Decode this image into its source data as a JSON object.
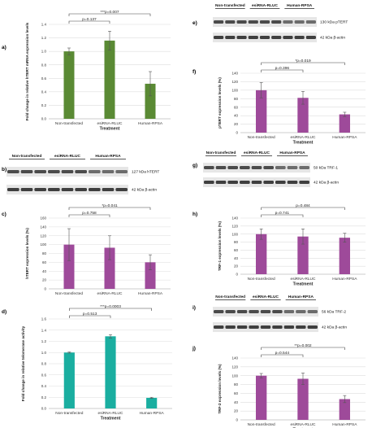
{
  "panels": [
    {
      "key": "a",
      "letter": "a)"
    },
    {
      "key": "b",
      "letter": "b)"
    },
    {
      "key": "c",
      "letter": "c)"
    },
    {
      "key": "d",
      "letter": "d)"
    },
    {
      "key": "e",
      "letter": "e)"
    },
    {
      "key": "f",
      "letter": "f)"
    },
    {
      "key": "g",
      "letter": "g)"
    },
    {
      "key": "h",
      "letter": "h)"
    },
    {
      "key": "i",
      "letter": "i)"
    },
    {
      "key": "j",
      "letter": "j)"
    }
  ],
  "blots": [
    {
      "key": "b",
      "headers": [
        "Non-transfected",
        "esiRNA-RLUC",
        "Human-RPSA"
      ],
      "band_labels": [
        "127 kDa hTERT",
        "42 kDa β-actin"
      ]
    },
    {
      "key": "e",
      "headers": [
        "Non-transfected",
        "esiRNA-RLUC",
        "Human-RPSA"
      ],
      "band_labels": [
        "130 kDa pTERT",
        "42 kDa β-actin"
      ]
    },
    {
      "key": "g",
      "headers": [
        "Non-transfected",
        "esiRNA-RLUC",
        "Human-RPSA"
      ],
      "band_labels": [
        "50 kDa TRF-1",
        "42 kDa β-actin"
      ]
    },
    {
      "key": "i",
      "headers": [
        "Non-transfected",
        "esiRNA-RLUC",
        "Human-RPSA"
      ],
      "band_labels": [
        "56 kDa TRF-2",
        "42 kDa β-actin"
      ]
    }
  ],
  "chart_data": [
    {
      "key": "a",
      "type": "bar",
      "categories": [
        "Non-transfected",
        "esiRNA-RLUC",
        "Human-RPSA"
      ],
      "values": [
        1.0,
        1.16,
        0.52
      ],
      "errors": [
        0.05,
        0.14,
        0.18
      ],
      "color": "#5a8a34",
      "ylabel": "Fold change in relative hTERT mRNA expression levels",
      "xlabel": "Treatment",
      "ylim": [
        0,
        1.4
      ],
      "ticks": [
        0,
        0.2,
        0.4,
        0.6,
        0.8,
        1.0,
        1.2,
        1.4
      ],
      "decimals": 1,
      "significance": [
        {
          "label": "p=0.137",
          "from": 0,
          "to": 1
        },
        {
          "label": "***p=0.007",
          "from": 0,
          "to": 2
        }
      ]
    },
    {
      "key": "c",
      "type": "bar",
      "categories": [
        "Non-transfected",
        "esiRNA-RLUC",
        "Human-RPSA"
      ],
      "values": [
        100,
        93,
        60
      ],
      "errors": [
        36,
        27,
        17
      ],
      "color": "#9e4a9a",
      "ylabel": "hTERT expression levels (%)",
      "xlabel": "",
      "ylim": [
        0,
        160
      ],
      "ticks": [
        0,
        20,
        40,
        60,
        80,
        100,
        120,
        140,
        160
      ],
      "decimals": 0,
      "significance": [
        {
          "label": "p=0.758",
          "from": 0,
          "to": 1
        },
        {
          "label": "*p=0.041",
          "from": 0,
          "to": 2
        }
      ]
    },
    {
      "key": "d",
      "type": "bar",
      "categories": [
        "Non-transfected",
        "esiRNA-RLUC",
        "Human-RPSA"
      ],
      "values": [
        1.0,
        1.29,
        0.19
      ],
      "errors": [
        0.01,
        0.03,
        0.01
      ],
      "color": "#1aaea0",
      "ylabel": "Fold change in relative telomerase activity",
      "xlabel": "Treatment",
      "ylim": [
        0,
        1.6
      ],
      "ticks": [
        0,
        0.2,
        0.4,
        0.6,
        0.8,
        1.0,
        1.2,
        1.4,
        1.6
      ],
      "decimals": 1,
      "significance": [
        {
          "label": "p=0.513",
          "from": 0,
          "to": 1
        },
        {
          "label": "***p=0.0003",
          "from": 0,
          "to": 2
        }
      ]
    },
    {
      "key": "f",
      "type": "bar",
      "categories": [
        "Non-transfected",
        "esiRNA-RLUC",
        "Human-RPSA"
      ],
      "values": [
        100,
        82,
        43
      ],
      "errors": [
        18,
        15,
        5
      ],
      "color": "#9e4a9a",
      "ylabel": "pTERT expression levels (%)",
      "xlabel": "Treatment",
      "ylim": [
        0,
        140
      ],
      "ticks": [
        0,
        20,
        40,
        60,
        80,
        100,
        120,
        140
      ],
      "decimals": 0,
      "significance": [
        {
          "label": "p=0.396",
          "from": 0,
          "to": 1
        },
        {
          "label": "*p=0.019",
          "from": 0,
          "to": 2
        }
      ]
    },
    {
      "key": "h",
      "type": "bar",
      "categories": [
        "Non-transfected",
        "esiRNA-RLUC",
        "Human-RPSA"
      ],
      "values": [
        100,
        94,
        91
      ],
      "errors": [
        13,
        19,
        11
      ],
      "color": "#9e4a9a",
      "ylabel": "TRF-1 expression levels (%)",
      "xlabel": "Treatment",
      "ylim": [
        0,
        140
      ],
      "ticks": [
        0,
        20,
        40,
        60,
        80,
        100,
        120,
        140
      ],
      "decimals": 0,
      "significance": [
        {
          "label": "p=0.741",
          "from": 0,
          "to": 1
        },
        {
          "label": "p=0.484",
          "from": 0,
          "to": 2
        }
      ]
    },
    {
      "key": "j",
      "type": "bar",
      "categories": [
        "Non-transfected",
        "esiRNA-RLUC",
        "Human-RPSA"
      ],
      "values": [
        100,
        93,
        47
      ],
      "errors": [
        5,
        13,
        8
      ],
      "color": "#9e4a9a",
      "ylabel": "TRF-2 expression levels (%)",
      "xlabel": "Treatment",
      "ylim": [
        0,
        140
      ],
      "ticks": [
        0,
        20,
        40,
        60,
        80,
        100,
        120,
        140
      ],
      "decimals": 0,
      "significance": [
        {
          "label": "p=0.544",
          "from": 0,
          "to": 1
        },
        {
          "label": "**p=0.002",
          "from": 0,
          "to": 2
        }
      ]
    }
  ]
}
